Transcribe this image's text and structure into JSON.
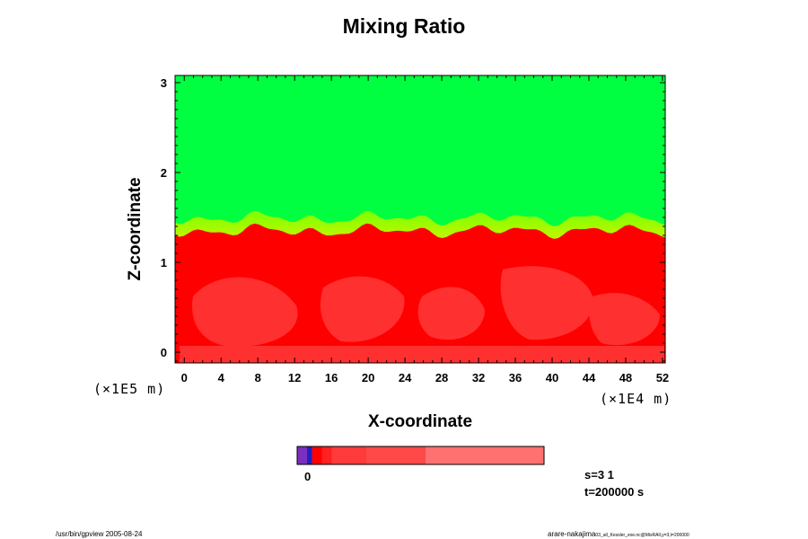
{
  "chart_data": {
    "type": "heatmap",
    "title": "Mixing Ratio",
    "xlabel": "X-coordinate",
    "ylabel": "Z-coordinate",
    "x_ticks": [
      "0",
      "4",
      "8",
      "12",
      "16",
      "20",
      "24",
      "28",
      "32",
      "36",
      "40",
      "44",
      "48",
      "52"
    ],
    "y_ticks": [
      "0",
      "1",
      "2",
      "3"
    ],
    "x_scale": "(×1E4 m)",
    "y_scale": "(×1E5 m)",
    "xlim": [
      -1,
      52.3
    ],
    "ylim": [
      -0.12,
      3.08
    ],
    "interface_height": 1.43,
    "regions": [
      {
        "name": "upper",
        "color": "#00ff40",
        "z_range": [
          1.43,
          3.08
        ]
      },
      {
        "name": "lower",
        "color": "#ff0000",
        "z_range": [
          -0.12,
          1.43
        ]
      }
    ],
    "colorbar": {
      "label": "0",
      "colors": [
        "#7b2fbf",
        "#2020c0",
        "#ff0000",
        "#ff2020",
        "#ff3a3a",
        "#ff4848",
        "#ff7070",
        "#ff9090"
      ],
      "stops": [
        0,
        0.04,
        0.06,
        0.1,
        0.14,
        0.28,
        0.52,
        1.0
      ]
    }
  },
  "info": {
    "s": "s=3 1",
    "t": "t=200000 s"
  },
  "footer": {
    "left": "/usr/bin/gpview 2005-08-24",
    "right_main": "arare-nakajima",
    "right_small": "03_all_Kessler_exe.nc@MixRAll,y=3,t=200000"
  }
}
